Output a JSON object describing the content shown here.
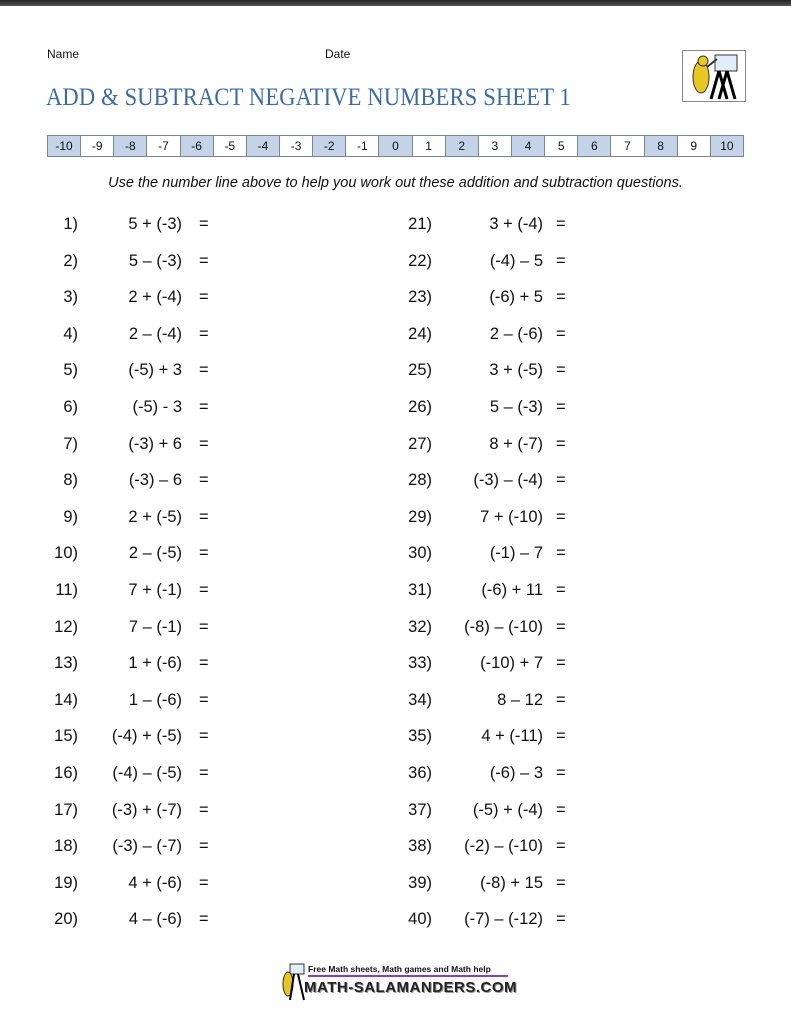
{
  "header": {
    "name_label": "Name",
    "date_label": "Date",
    "title": "ADD & SUBTRACT NEGATIVE NUMBERS SHEET 1"
  },
  "number_line": [
    "-10",
    "-9",
    "-8",
    "-7",
    "-6",
    "-5",
    "-4",
    "-3",
    "-2",
    "-1",
    "0",
    "1",
    "2",
    "3",
    "4",
    "5",
    "6",
    "7",
    "8",
    "9",
    "10"
  ],
  "colors": {
    "title": "#3b6aa6",
    "shaded_cell": "#c5d3e8"
  },
  "instructions": "Use the number line above to help you work out these addition and subtraction questions.",
  "questions": [
    {
      "n": "1)",
      "e": "5 + (-3)"
    },
    {
      "n": "2)",
      "e": "5 – (-3)"
    },
    {
      "n": "3)",
      "e": "2 + (-4)"
    },
    {
      "n": "4)",
      "e": "2 – (-4)"
    },
    {
      "n": "5)",
      "e": "(-5) + 3"
    },
    {
      "n": "6)",
      "e": "(-5) - 3"
    },
    {
      "n": "7)",
      "e": "(-3) + 6"
    },
    {
      "n": "8)",
      "e": "(-3) – 6"
    },
    {
      "n": "9)",
      "e": "2 + (-5)"
    },
    {
      "n": "10)",
      "e": "2 – (-5)"
    },
    {
      "n": "11)",
      "e": "7 + (-1)"
    },
    {
      "n": "12)",
      "e": "7 – (-1)"
    },
    {
      "n": "13)",
      "e": "1 + (-6)"
    },
    {
      "n": "14)",
      "e": "1 – (-6)"
    },
    {
      "n": "15)",
      "e": "(-4) + (-5)"
    },
    {
      "n": "16)",
      "e": "(-4) – (-5)"
    },
    {
      "n": "17)",
      "e": "(-3) + (-7)"
    },
    {
      "n": "18)",
      "e": "(-3) – (-7)"
    },
    {
      "n": "19)",
      "e": "4 + (-6)"
    },
    {
      "n": "20)",
      "e": "4 – (-6)"
    },
    {
      "n": "21)",
      "e": "3 + (-4)"
    },
    {
      "n": "22)",
      "e": "(-4) – 5"
    },
    {
      "n": "23)",
      "e": "(-6) + 5"
    },
    {
      "n": "24)",
      "e": "2 – (-6)"
    },
    {
      "n": "25)",
      "e": "3 + (-5)"
    },
    {
      "n": "26)",
      "e": "5 – (-3)"
    },
    {
      "n": "27)",
      "e": "8 + (-7)"
    },
    {
      "n": "28)",
      "e": "(-3) – (-4)"
    },
    {
      "n": "29)",
      "e": "7 + (-10)"
    },
    {
      "n": "30)",
      "e": "(-1) – 7"
    },
    {
      "n": "31)",
      "e": "(-6) + 11"
    },
    {
      "n": "32)",
      "e": "(-8) – (-10)"
    },
    {
      "n": "33)",
      "e": "(-10) + 7"
    },
    {
      "n": "34)",
      "e": "8 – 12"
    },
    {
      "n": "35)",
      "e": "4 + (-11)"
    },
    {
      "n": "36)",
      "e": "(-6) – 3"
    },
    {
      "n": "37)",
      "e": "(-5) + (-4)"
    },
    {
      "n": "38)",
      "e": "(-2) – (-10)"
    },
    {
      "n": "39)",
      "e": "(-8) + 15"
    },
    {
      "n": "40)",
      "e": "(-7) – (-12)"
    }
  ],
  "equals": "=",
  "footer": {
    "tagline": "Free Math sheets, Math games and Math help",
    "site": "MATH-SALAMANDERS.COM"
  }
}
